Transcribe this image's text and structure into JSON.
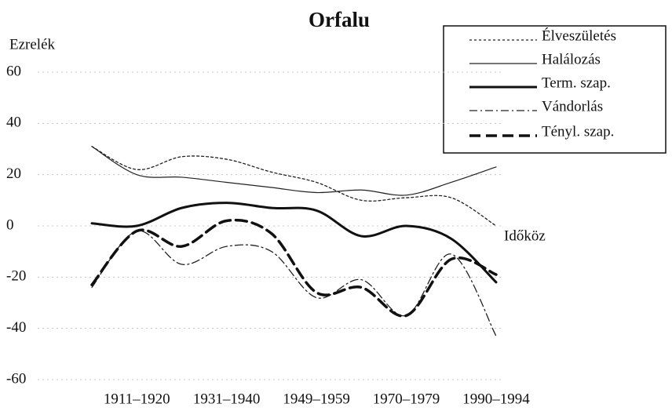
{
  "chart_data": {
    "type": "line",
    "title": "Orfalu",
    "y_label": "Ezrelék",
    "x_label": "Időköz",
    "categories": [
      null,
      "1911–1920",
      null,
      "1931–1940",
      null,
      "1949–1959",
      null,
      "1970–1979",
      null,
      "1990–1994"
    ],
    "series": [
      {
        "name": "Élveszületés",
        "color": "#222222",
        "line_style": "dotted",
        "values": [
          31,
          22,
          27,
          26,
          21,
          17,
          10,
          11,
          11,
          0
        ]
      },
      {
        "name": "Halálozás",
        "color": "#222222",
        "line_style": "solid",
        "values": [
          31,
          20,
          19,
          17,
          15,
          13,
          14,
          12,
          17,
          23
        ]
      },
      {
        "name": "Term. szap.",
        "color": "#111111",
        "line_style": "solid-thick",
        "values": [
          1,
          0,
          7,
          9,
          7,
          6,
          -4,
          0,
          -5,
          -22
        ]
      },
      {
        "name": "Vándorlás",
        "color": "#222222",
        "line_style": "dash-dot",
        "values": [
          -24,
          -2,
          -15,
          -8,
          -10,
          -28,
          -21,
          -35,
          -11,
          -43
        ]
      },
      {
        "name": "Tényl. szap.",
        "color": "#111111",
        "line_style": "dash-thick",
        "values": [
          -23,
          -2,
          -8,
          2,
          -3,
          -26,
          -24,
          -35,
          -13,
          -19
        ]
      }
    ],
    "ylim": [
      -60,
      60
    ],
    "yticks": [
      -60,
      -40,
      -20,
      0,
      20,
      40,
      60
    ],
    "grid": true,
    "legend": "top-right"
  }
}
